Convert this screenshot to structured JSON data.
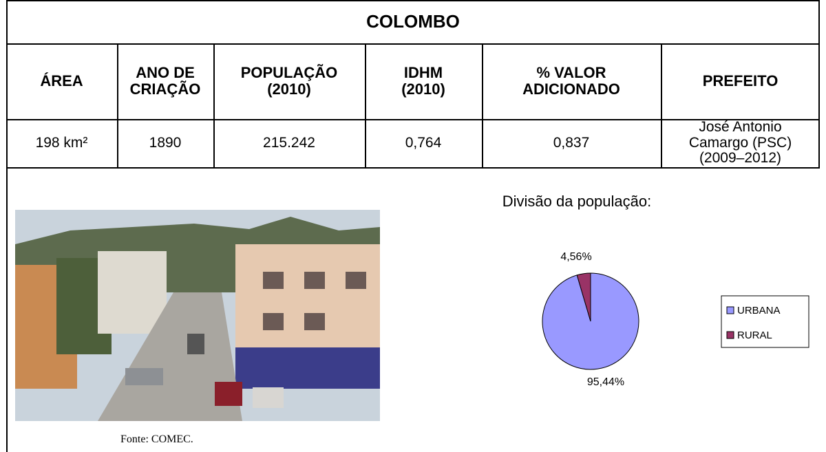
{
  "header": {
    "title": "COLOMBO"
  },
  "table": {
    "headers": [
      "ÁREA",
      "ANO DE\nCRIAÇÃO",
      "POPULAÇÃO\n(2010)",
      "IDHM\n(2010)",
      "% VALOR\nADICIONADO",
      "PREFEITO"
    ],
    "rows": [
      [
        "198 km²",
        "1890",
        "215.242",
        "0,764",
        "0,837",
        "José Antonio\nCamargo (PSC)\n(2009–2012)"
      ]
    ]
  },
  "photo": {
    "caption": "Fonte: COMEC."
  },
  "chart_data": {
    "type": "pie",
    "title": "Divisão da população:",
    "categories": [
      "URBANA",
      "RURAL"
    ],
    "values": [
      95.44,
      4.56
    ],
    "value_labels": [
      "95,44%",
      "4,56%"
    ],
    "colors": [
      "#9999ff",
      "#993366"
    ],
    "legend": "right"
  }
}
